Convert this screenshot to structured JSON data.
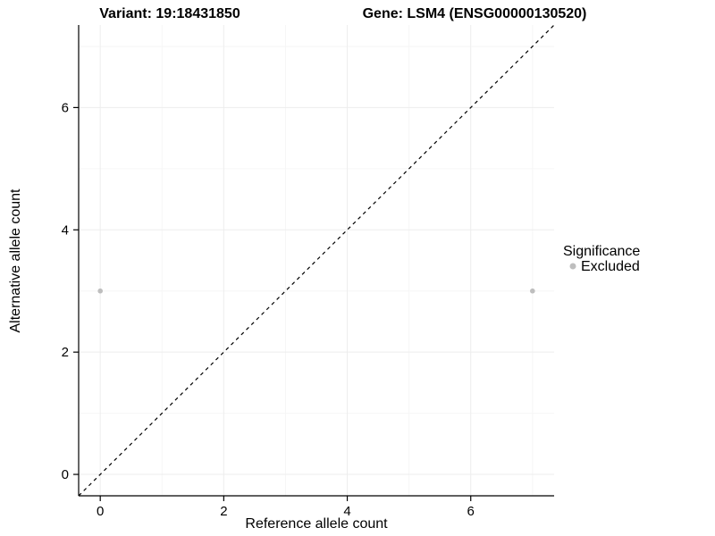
{
  "chart_data": {
    "type": "scatter",
    "title_left": "Variant: 19:18431850",
    "title_right": "Gene: LSM4 (ENSG00000130520)",
    "xlabel": "Reference allele count",
    "ylabel": "Alternative allele count",
    "xlim": [
      -0.35,
      7.35
    ],
    "ylim": [
      -0.35,
      7.35
    ],
    "xticks": [
      0,
      2,
      4,
      6
    ],
    "yticks": [
      0,
      2,
      4,
      6
    ],
    "xticks_minor": [
      1,
      3,
      5,
      7
    ],
    "yticks_minor": [
      1,
      3,
      5,
      7
    ],
    "grid": "on",
    "series": [
      {
        "name": "Excluded",
        "color": "#bebebe",
        "points": [
          {
            "x": 0,
            "y": 3
          },
          {
            "x": 7,
            "y": 3
          }
        ]
      }
    ],
    "reference_line": {
      "type": "identity",
      "slope": 1,
      "intercept": 0,
      "style": "dashed",
      "color": "#000000"
    },
    "legend": {
      "title": "Significance",
      "position": "right",
      "entries": [
        {
          "label": "Excluded",
          "color": "#bebebe"
        }
      ]
    },
    "style": {
      "background": "#ffffff",
      "axis_color": "#000000",
      "grid_major": "#ededed",
      "grid_minor": "#f6f6f6",
      "point_radius": 2.8,
      "legend_point_radius": 3.5
    }
  }
}
